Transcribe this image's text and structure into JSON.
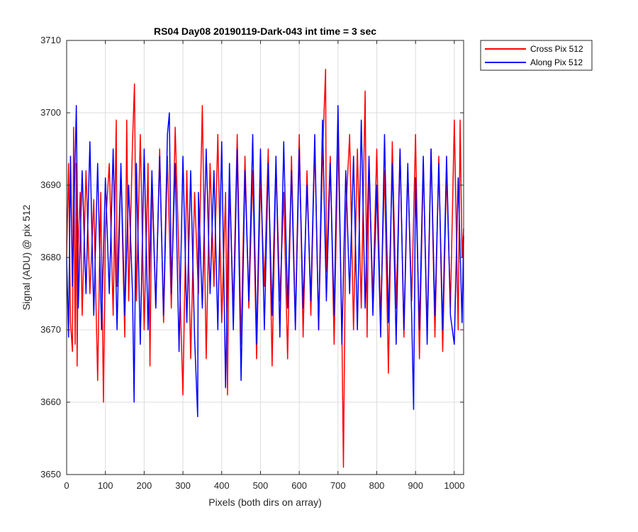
{
  "chart_data": {
    "type": "line",
    "title": "RS04 Day08 20190119-Dark-043 int time = 3 sec",
    "xlabel": "Pixels (both dirs on array)",
    "ylabel": "Signal (ADU) @ pix 512",
    "xlim": [
      0,
      1024
    ],
    "ylim": [
      3650,
      3710
    ],
    "xticks": [
      0,
      100,
      200,
      300,
      400,
      500,
      600,
      700,
      800,
      900,
      1000
    ],
    "yticks": [
      3650,
      3660,
      3670,
      3680,
      3690,
      3700,
      3710
    ],
    "grid": true,
    "legend_position": "outside-top-right",
    "series": [
      {
        "name": "Cross Pix 512",
        "color": "#ff0000",
        "x": [
          0,
          5,
          10,
          15,
          18,
          22,
          25,
          27,
          30,
          35,
          40,
          50,
          60,
          70,
          80,
          88,
          95,
          100,
          110,
          120,
          128,
          130,
          140,
          150,
          155,
          160,
          170,
          175,
          180,
          190,
          200,
          210,
          215,
          220,
          230,
          240,
          250,
          260,
          270,
          280,
          300,
          310,
          320,
          330,
          340,
          350,
          360,
          370,
          380,
          390,
          400,
          410,
          415,
          420,
          430,
          440,
          450,
          460,
          470,
          480,
          490,
          500,
          510,
          520,
          530,
          540,
          550,
          560,
          570,
          580,
          590,
          600,
          610,
          620,
          630,
          640,
          650,
          660,
          668,
          670,
          680,
          690,
          700,
          710,
          714,
          720,
          730,
          740,
          750,
          760,
          770,
          775,
          780,
          790,
          800,
          810,
          820,
          830,
          840,
          850,
          860,
          870,
          880,
          890,
          900,
          910,
          920,
          930,
          940,
          950,
          960,
          970,
          980,
          990,
          1000,
          1010,
          1015,
          1020,
          1024
        ],
        "values": [
          3680,
          3693,
          3671,
          3667,
          3698,
          3668,
          3693,
          3665,
          3682,
          3689,
          3672,
          3692,
          3675,
          3688,
          3663,
          3689,
          3660,
          3684,
          3693,
          3672,
          3699,
          3676,
          3692,
          3669,
          3699,
          3674,
          3696,
          3704,
          3674,
          3697,
          3670,
          3693,
          3665,
          3691,
          3673,
          3695,
          3671,
          3694,
          3673,
          3698,
          3661,
          3692,
          3666,
          3689,
          3675,
          3701,
          3666,
          3693,
          3676,
          3697,
          3671,
          3689,
          3661,
          3690,
          3673,
          3697,
          3668,
          3694,
          3673,
          3692,
          3666,
          3691,
          3676,
          3695,
          3665,
          3693,
          3674,
          3689,
          3666,
          3694,
          3671,
          3697,
          3669,
          3692,
          3672,
          3696,
          3670,
          3694,
          3706,
          3678,
          3694,
          3668,
          3697,
          3670,
          3651,
          3686,
          3697,
          3670,
          3695,
          3673,
          3703,
          3669,
          3693,
          3674,
          3695,
          3671,
          3692,
          3664,
          3696,
          3673,
          3695,
          3669,
          3692,
          3674,
          3697,
          3666,
          3693,
          3670,
          3695,
          3669,
          3694,
          3667,
          3692,
          3673,
          3699,
          3670,
          3699,
          3680,
          3684
        ]
      },
      {
        "name": "Along Pix 512",
        "color": "#0000ff",
        "x": [
          0,
          5,
          10,
          15,
          20,
          25,
          30,
          40,
          50,
          60,
          70,
          80,
          90,
          100,
          110,
          120,
          130,
          140,
          150,
          160,
          170,
          174,
          180,
          190,
          200,
          210,
          220,
          230,
          240,
          250,
          260,
          265,
          270,
          280,
          290,
          300,
          310,
          320,
          330,
          338,
          340,
          350,
          360,
          370,
          380,
          390,
          400,
          410,
          420,
          430,
          440,
          450,
          460,
          470,
          480,
          490,
          500,
          510,
          520,
          530,
          540,
          550,
          560,
          570,
          580,
          590,
          600,
          610,
          620,
          630,
          640,
          650,
          660,
          670,
          680,
          690,
          700,
          710,
          720,
          730,
          740,
          750,
          760,
          770,
          780,
          790,
          800,
          810,
          820,
          830,
          840,
          850,
          860,
          870,
          880,
          890,
          895,
          900,
          910,
          920,
          930,
          940,
          950,
          960,
          970,
          980,
          990,
          1000,
          1010,
          1020,
          1024
        ],
        "values": [
          3680,
          3669,
          3694,
          3676,
          3689,
          3701,
          3673,
          3692,
          3675,
          3696,
          3672,
          3693,
          3670,
          3691,
          3675,
          3695,
          3670,
          3693,
          3672,
          3690,
          3675,
          3660,
          3693,
          3668,
          3695,
          3670,
          3692,
          3673,
          3694,
          3672,
          3697,
          3700,
          3675,
          3693,
          3667,
          3694,
          3671,
          3692,
          3669,
          3658,
          3689,
          3673,
          3695,
          3675,
          3692,
          3670,
          3696,
          3662,
          3693,
          3670,
          3695,
          3663,
          3692,
          3674,
          3697,
          3668,
          3695,
          3670,
          3693,
          3672,
          3694,
          3669,
          3696,
          3673,
          3692,
          3670,
          3695,
          3673,
          3690,
          3674,
          3697,
          3670,
          3699,
          3674,
          3693,
          3672,
          3701,
          3668,
          3692,
          3675,
          3694,
          3670,
          3699,
          3673,
          3694,
          3672,
          3690,
          3669,
          3697,
          3671,
          3693,
          3668,
          3695,
          3670,
          3693,
          3672,
          3659,
          3691,
          3670,
          3694,
          3668,
          3695,
          3672,
          3693,
          3670,
          3694,
          3672,
          3668,
          3691,
          3671,
          3683
        ]
      }
    ]
  }
}
